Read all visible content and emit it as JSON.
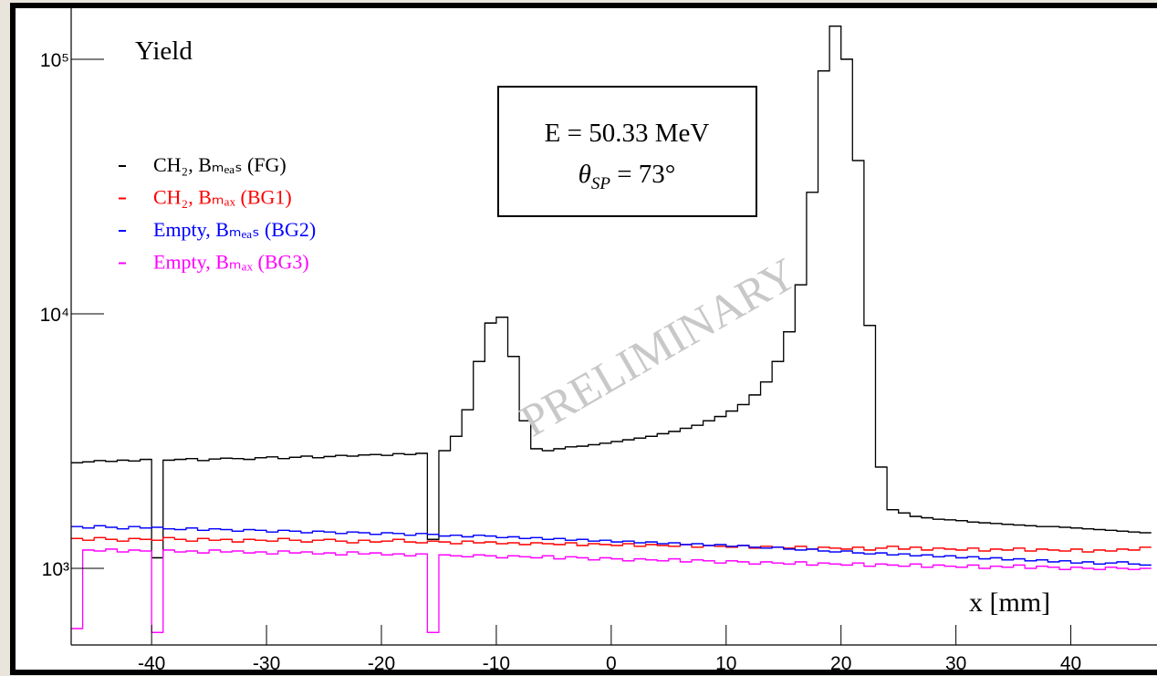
{
  "chart_data": {
    "type": "histogram",
    "title": "Yield",
    "x_label": "x [mm]",
    "annotations": [
      {
        "text": "E = 50.33 MeV"
      },
      {
        "symbol": "θ",
        "subscript": "SP",
        "text": " = 73°"
      }
    ],
    "watermark": "PRELIMINARY",
    "log_y": true,
    "legend": "upper left",
    "xlim": [
      -47,
      47.5
    ],
    "ylim": [
      500,
      160000
    ],
    "xticks": [
      -40,
      -30,
      -20,
      -10,
      0,
      10,
      20,
      30,
      40
    ],
    "yticks": [
      {
        "value": 1000,
        "label": "10³"
      },
      {
        "value": 10000,
        "label": "10⁴"
      },
      {
        "value": 100000,
        "label": "10⁵"
      }
    ],
    "bins": [
      -47,
      -46,
      -45,
      -44,
      -43,
      -42,
      -41,
      -40,
      -39,
      -38,
      -37,
      -36,
      -35,
      -34,
      -33,
      -32,
      -31,
      -30,
      -29,
      -28,
      -27,
      -26,
      -25,
      -24,
      -23,
      -22,
      -21,
      -20,
      -19,
      -18,
      -17,
      -16,
      -15,
      -14,
      -13,
      -12,
      -11,
      -10,
      -9,
      -8,
      -7,
      -6,
      -5,
      -4,
      -3,
      -2,
      -1,
      0,
      1,
      2,
      3,
      4,
      5,
      6,
      7,
      8,
      9,
      10,
      11,
      12,
      13,
      14,
      15,
      16,
      17,
      18,
      19,
      20,
      21,
      22,
      23,
      24,
      25,
      26,
      27,
      28,
      29,
      30,
      31,
      32,
      33,
      34,
      35,
      36,
      37,
      38,
      39,
      40,
      41,
      42,
      43,
      44,
      45,
      46,
      47
    ],
    "series": [
      {
        "name": "CH₂, Bₘₑₐₛ (FG)",
        "color": "#000000",
        "values": [
          2600,
          2620,
          2650,
          2630,
          2660,
          2640,
          2680,
          1100,
          2660,
          2680,
          2700,
          2650,
          2690,
          2710,
          2700,
          2680,
          2720,
          2740,
          2700,
          2730,
          2760,
          2720,
          2750,
          2780,
          2760,
          2790,
          2800,
          2780,
          2820,
          2800,
          2830,
          1300,
          2900,
          3300,
          4200,
          6500,
          9200,
          9700,
          6800,
          3800,
          2950,
          2900,
          2950,
          3000,
          3020,
          3060,
          3100,
          3150,
          3200,
          3250,
          3300,
          3380,
          3450,
          3550,
          3650,
          3800,
          3950,
          4150,
          4400,
          4800,
          5400,
          6500,
          8500,
          13000,
          30000,
          90000,
          135000,
          100000,
          40000,
          9000,
          2500,
          1700,
          1650,
          1600,
          1580,
          1560,
          1550,
          1540,
          1520,
          1510,
          1500,
          1490,
          1480,
          1470,
          1460,
          1460,
          1450,
          1440,
          1430,
          1420,
          1410,
          1400,
          1390,
          1380
        ]
      },
      {
        "name": "CH₂, Bₘₐₓ (BG1)",
        "color": "#ff0000",
        "values": [
          1310,
          1290,
          1320,
          1300,
          1280,
          1310,
          1300,
          1290,
          1320,
          1300,
          1280,
          1310,
          1290,
          1300,
          1270,
          1300,
          1290,
          1280,
          1310,
          1290,
          1270,
          1290,
          1300,
          1280,
          1260,
          1290,
          1270,
          1280,
          1300,
          1270,
          1260,
          1280,
          1270,
          1250,
          1280,
          1260,
          1270,
          1250,
          1260,
          1240,
          1260,
          1250,
          1240,
          1260,
          1230,
          1250,
          1240,
          1230,
          1250,
          1220,
          1240,
          1230,
          1220,
          1240,
          1210,
          1230,
          1220,
          1210,
          1230,
          1200,
          1220,
          1210,
          1200,
          1220,
          1190,
          1210,
          1200,
          1190,
          1210,
          1180,
          1200,
          1220,
          1190,
          1210,
          1180,
          1200,
          1190,
          1180,
          1200,
          1170,
          1190,
          1180,
          1200,
          1170,
          1190,
          1180,
          1170,
          1190,
          1160,
          1180,
          1170,
          1190,
          1180,
          1210
        ]
      },
      {
        "name": "Empty, Bₘₑₐₛ (BG2)",
        "color": "#0000ff",
        "values": [
          1460,
          1440,
          1470,
          1450,
          1430,
          1460,
          1440,
          1450,
          1430,
          1420,
          1440,
          1410,
          1430,
          1420,
          1400,
          1420,
          1410,
          1390,
          1410,
          1400,
          1380,
          1400,
          1390,
          1370,
          1390,
          1380,
          1360,
          1380,
          1370,
          1350,
          1370,
          1360,
          1340,
          1350,
          1330,
          1350,
          1340,
          1320,
          1330,
          1310,
          1320,
          1300,
          1310,
          1290,
          1300,
          1280,
          1290,
          1270,
          1280,
          1260,
          1270,
          1250,
          1260,
          1240,
          1250,
          1230,
          1240,
          1220,
          1230,
          1210,
          1200,
          1210,
          1190,
          1180,
          1190,
          1170,
          1160,
          1170,
          1150,
          1140,
          1150,
          1130,
          1140,
          1120,
          1130,
          1110,
          1120,
          1100,
          1110,
          1090,
          1100,
          1080,
          1090,
          1070,
          1080,
          1060,
          1070,
          1050,
          1060,
          1040,
          1050,
          1060,
          1040,
          1030
        ]
      },
      {
        "name": "Empty, Bₘₐₓ (BG3)",
        "color": "#ff00ff",
        "values": [
          580,
          1180,
          1170,
          1190,
          1160,
          1180,
          1170,
          560,
          1180,
          1160,
          1170,
          1150,
          1180,
          1160,
          1170,
          1150,
          1160,
          1140,
          1170,
          1150,
          1160,
          1140,
          1150,
          1130,
          1160,
          1140,
          1150,
          1130,
          1140,
          1120,
          1140,
          560,
          1130,
          1120,
          1110,
          1130,
          1120,
          1100,
          1120,
          1110,
          1100,
          1120,
          1090,
          1110,
          1100,
          1080,
          1100,
          1090,
          1070,
          1090,
          1080,
          1070,
          1090,
          1060,
          1080,
          1070,
          1050,
          1070,
          1060,
          1040,
          1060,
          1050,
          1040,
          1060,
          1030,
          1050,
          1040,
          1030,
          1050,
          1020,
          1040,
          1030,
          1020,
          1040,
          1010,
          1030,
          1020,
          1010,
          1030,
          1000,
          1020,
          1010,
          1030,
          1000,
          1020,
          1010,
          990,
          1010,
          1000,
          990,
          1010,
          1000,
          990,
          1000
        ]
      }
    ]
  }
}
